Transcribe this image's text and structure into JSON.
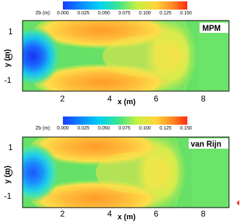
{
  "colorbar": {
    "title": "Zb (m):",
    "ticks": [
      "0.000",
      "0.025",
      "0.050",
      "0.075",
      "0.100",
      "0.125",
      "0.150"
    ],
    "stops": [
      "#1a3cff",
      "#00aaff",
      "#00e0d0",
      "#66ee66",
      "#ffee55",
      "#ffaa33",
      "#ff3311"
    ]
  },
  "colors": {
    "background_field": "#66e066",
    "low": "#1f45ff",
    "mid_cyan": "#22cfe6",
    "high_orange": "#ffb13a",
    "yellow": "#ffd94a"
  },
  "chart_data": [
    {
      "type": "heatmap",
      "label": "MPM",
      "variable": "Zb (m)",
      "xlabel": "x (m)",
      "ylabel": "y (m)",
      "xticks": [
        "2",
        "4",
        "6",
        "8"
      ],
      "yticks": [
        "1",
        "0",
        "-1"
      ],
      "xlim": [
        0.6,
        9.2
      ],
      "ylim": [
        -1.6,
        1.6
      ],
      "clim": [
        0.0,
        0.15
      ],
      "features": {
        "scour_hole_center": [
          1.0,
          0.0
        ],
        "scour_min_value": 0.0,
        "deposition_bar_ranges_x": [
          2.0,
          5.5
        ],
        "deposition_bar_peak_value": 0.12,
        "deposition_front_x": 6.8,
        "background_value": 0.075
      }
    },
    {
      "type": "heatmap",
      "label": "van Rijn",
      "variable": "Zb (m)",
      "xlabel": "x (m)",
      "ylabel": "y (m)",
      "xticks": [
        "2",
        "4",
        "6",
        "8"
      ],
      "yticks": [
        "1",
        "0",
        "-1"
      ],
      "xlim": [
        0.6,
        9.2
      ],
      "ylim": [
        -1.6,
        1.6
      ],
      "clim": [
        0.0,
        0.15
      ],
      "features": {
        "scour_hole_center": [
          1.0,
          0.0
        ],
        "scour_min_value": 0.02,
        "deposition_bar_ranges_x": [
          2.0,
          5.0
        ],
        "deposition_bar_peak_value": 0.11,
        "deposition_front_x": 6.3,
        "background_value": 0.075
      }
    }
  ]
}
